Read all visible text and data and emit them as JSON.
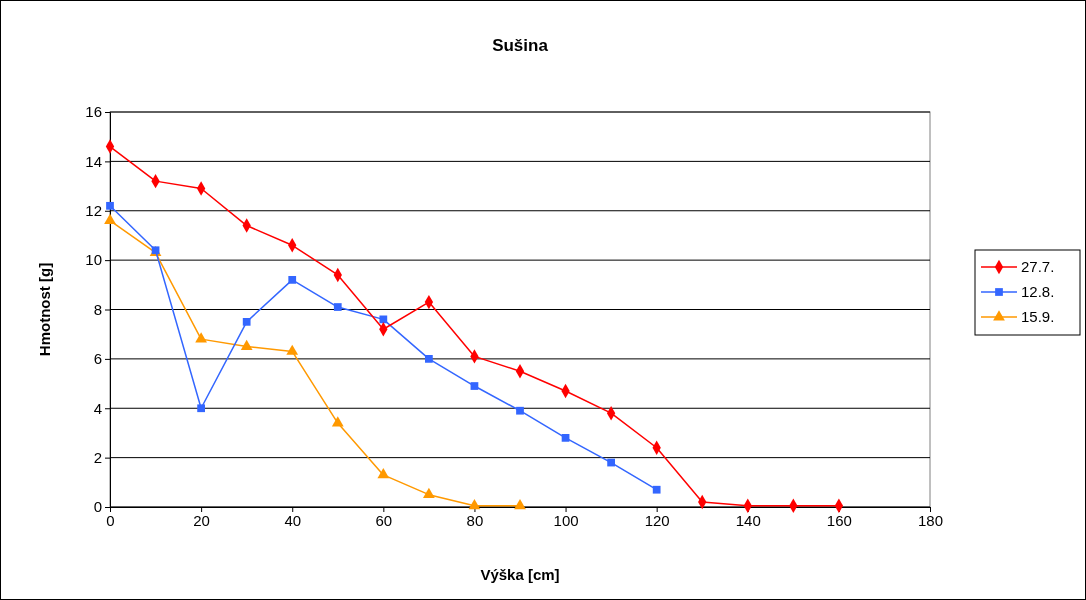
{
  "chart_data": {
    "type": "line",
    "title": "Sušina",
    "xlabel": "Výška [cm]",
    "ylabel": "Hmotnost [g]",
    "xlim": [
      0,
      180
    ],
    "xticks": [
      0,
      20,
      40,
      60,
      80,
      100,
      120,
      140,
      160,
      180
    ],
    "ylim": [
      0,
      16
    ],
    "yticks": [
      0,
      2,
      4,
      6,
      8,
      10,
      12,
      14,
      16
    ],
    "grid": "y",
    "legend": "right",
    "line_style": "solid",
    "series": [
      {
        "name": "27.7.",
        "color": "#ff0000",
        "marker": "diamond",
        "x": [
          0,
          10,
          20,
          30,
          40,
          50,
          60,
          70,
          80,
          90,
          100,
          110,
          120,
          130,
          140,
          150,
          160
        ],
        "values": [
          14.6,
          13.2,
          12.9,
          11.4,
          10.6,
          9.4,
          7.2,
          8.3,
          6.1,
          5.5,
          4.7,
          3.8,
          2.4,
          0.2,
          0.05,
          0.05,
          0.05
        ]
      },
      {
        "name": "12.8.",
        "color": "#3366ff",
        "marker": "square",
        "x": [
          0,
          10,
          20,
          30,
          40,
          50,
          60,
          70,
          80,
          90,
          100,
          110,
          120
        ],
        "values": [
          12.2,
          10.4,
          4.0,
          7.5,
          9.2,
          8.1,
          7.6,
          6.0,
          4.9,
          3.9,
          2.8,
          1.8,
          0.7
        ]
      },
      {
        "name": "15.9.",
        "color": "#ff9900",
        "marker": "triangle",
        "x": [
          0,
          10,
          20,
          30,
          40,
          50,
          60,
          70,
          80,
          90
        ],
        "values": [
          11.6,
          10.3,
          6.8,
          6.5,
          6.3,
          3.4,
          1.3,
          0.5,
          0.05,
          0.05
        ]
      }
    ]
  }
}
